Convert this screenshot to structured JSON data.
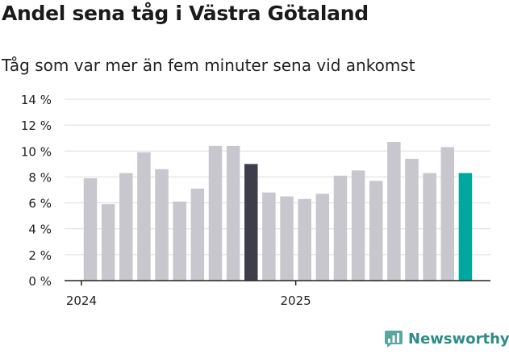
{
  "header": {
    "title": "Andel sena tåg i Västra Götaland",
    "subtitle": "Tåg som var mer än fem minuter sena vid ankomst"
  },
  "brand": {
    "name": "Newsworthy"
  },
  "colors": {
    "bar": "#c8c7cd",
    "highlight_dark": "#3e3e4a",
    "highlight_teal": "#00a79d",
    "grid": "#dddddd",
    "axis": "#222222",
    "brand": "#2d8c86"
  },
  "chart_data": {
    "type": "bar",
    "title": "Andel sena tåg i Västra Götaland",
    "subtitle": "Tåg som var mer än fem minuter sena vid ankomst",
    "ylim": [
      0,
      14
    ],
    "yticks": [
      0,
      2,
      4,
      6,
      8,
      10,
      12,
      14
    ],
    "ytick_labels": [
      "0 %",
      "2 %",
      "4 %",
      "6 %",
      "8 %",
      "10 %",
      "12 %",
      "14 %"
    ],
    "x_tick_labels": [
      {
        "label": "2024",
        "before_index": 0
      },
      {
        "label": "2025",
        "before_index": 12
      }
    ],
    "values": [
      7.9,
      5.9,
      8.3,
      9.9,
      8.6,
      6.1,
      7.1,
      10.4,
      10.4,
      9.0,
      6.8,
      6.5,
      6.3,
      6.7,
      8.1,
      8.5,
      7.7,
      10.7,
      9.4,
      8.3,
      10.3,
      8.3
    ],
    "highlights": [
      {
        "index": 9,
        "color": "#3e3e4a"
      },
      {
        "index": 21,
        "color": "#00a79d"
      }
    ],
    "grid": true
  }
}
